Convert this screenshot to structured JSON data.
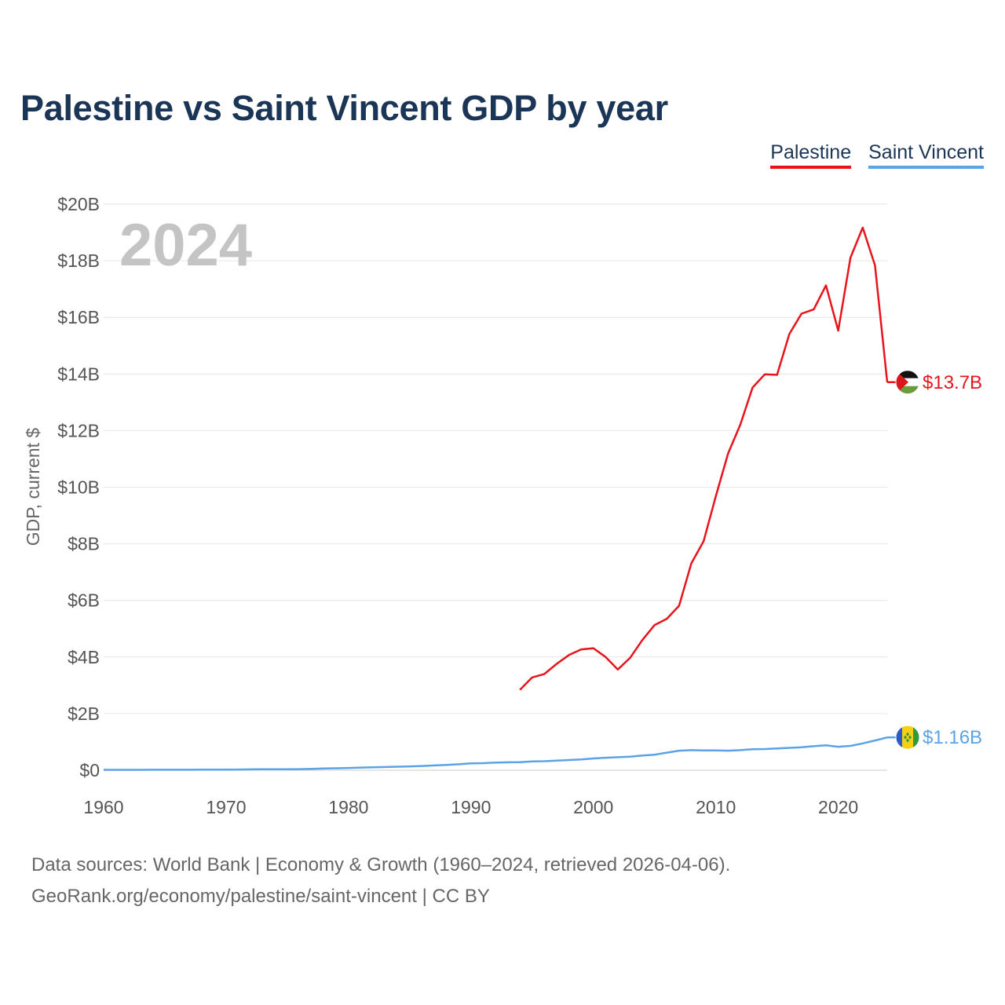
{
  "title": "Palestine vs Saint Vincent GDP by year",
  "legend": {
    "palestine": "Palestine",
    "saint_vincent": "Saint Vincent"
  },
  "colors": {
    "palestine": "#e8141c",
    "saint_vincent": "#5ba3e6",
    "title": "#1b3556"
  },
  "footer": {
    "line1": "Data sources: World Bank | Economy & Growth (1960–2024, retrieved 2026-04-06).",
    "line2": "GeoRank.org/economy/palestine/saint-vincent | CC BY"
  },
  "chart_data": {
    "type": "line",
    "title": "Palestine vs Saint Vincent GDP by year",
    "ylabel": "GDP, current $",
    "xlabel": "",
    "year_label": "2024",
    "xlim": [
      1960,
      2024
    ],
    "ylim": [
      0,
      20
    ],
    "x_ticks": [
      1960,
      1970,
      1980,
      1990,
      2000,
      2010,
      2020
    ],
    "y_ticks": [
      0,
      2,
      4,
      6,
      8,
      10,
      12,
      14,
      16,
      18,
      20
    ],
    "y_tick_labels": [
      "$0",
      "$2B",
      "$4B",
      "$6B",
      "$8B",
      "$10B",
      "$12B",
      "$14B",
      "$16B",
      "$18B",
      "$20B"
    ],
    "grid": true,
    "legend_position": "top-right",
    "units": "billions USD",
    "series": [
      {
        "name": "Palestine",
        "key": "palestine",
        "end_label": "$13.7B",
        "x": [
          1994,
          1995,
          1996,
          1997,
          1998,
          1999,
          2000,
          2001,
          2002,
          2003,
          2004,
          2005,
          2006,
          2007,
          2008,
          2009,
          2010,
          2011,
          2012,
          2013,
          2014,
          2015,
          2016,
          2017,
          2018,
          2019,
          2020,
          2021,
          2022,
          2023,
          2024
        ],
        "values": [
          2.84,
          3.28,
          3.4,
          3.76,
          4.07,
          4.27,
          4.31,
          4.0,
          3.56,
          3.97,
          4.6,
          5.13,
          5.35,
          5.81,
          7.31,
          8.09,
          9.68,
          11.19,
          12.21,
          13.52,
          13.99,
          13.97,
          15.41,
          16.13,
          16.28,
          17.13,
          15.53,
          18.11,
          19.17,
          17.84,
          13.71
        ]
      },
      {
        "name": "Saint Vincent",
        "key": "saint_vincent",
        "end_label": "$1.16B",
        "x": [
          1960,
          1961,
          1962,
          1963,
          1964,
          1965,
          1966,
          1967,
          1968,
          1969,
          1970,
          1971,
          1972,
          1973,
          1974,
          1975,
          1976,
          1977,
          1978,
          1979,
          1980,
          1981,
          1982,
          1983,
          1984,
          1985,
          1986,
          1987,
          1988,
          1989,
          1990,
          1991,
          1992,
          1993,
          1994,
          1995,
          1996,
          1997,
          1998,
          1999,
          2000,
          2001,
          2002,
          2003,
          2004,
          2005,
          2006,
          2007,
          2008,
          2009,
          2010,
          2011,
          2012,
          2013,
          2014,
          2015,
          2016,
          2017,
          2018,
          2019,
          2020,
          2021,
          2022,
          2023,
          2024
        ],
        "values": [
          0.013,
          0.014,
          0.015,
          0.015,
          0.016,
          0.017,
          0.018,
          0.018,
          0.019,
          0.02,
          0.021,
          0.024,
          0.03,
          0.033,
          0.036,
          0.037,
          0.04,
          0.05,
          0.06,
          0.07,
          0.08,
          0.095,
          0.105,
          0.115,
          0.125,
          0.135,
          0.15,
          0.17,
          0.19,
          0.21,
          0.24,
          0.25,
          0.27,
          0.28,
          0.285,
          0.31,
          0.32,
          0.34,
          0.36,
          0.38,
          0.415,
          0.44,
          0.46,
          0.48,
          0.52,
          0.55,
          0.62,
          0.69,
          0.71,
          0.7,
          0.7,
          0.69,
          0.71,
          0.74,
          0.75,
          0.77,
          0.79,
          0.81,
          0.85,
          0.88,
          0.83,
          0.86,
          0.95,
          1.05,
          1.16
        ]
      }
    ]
  }
}
